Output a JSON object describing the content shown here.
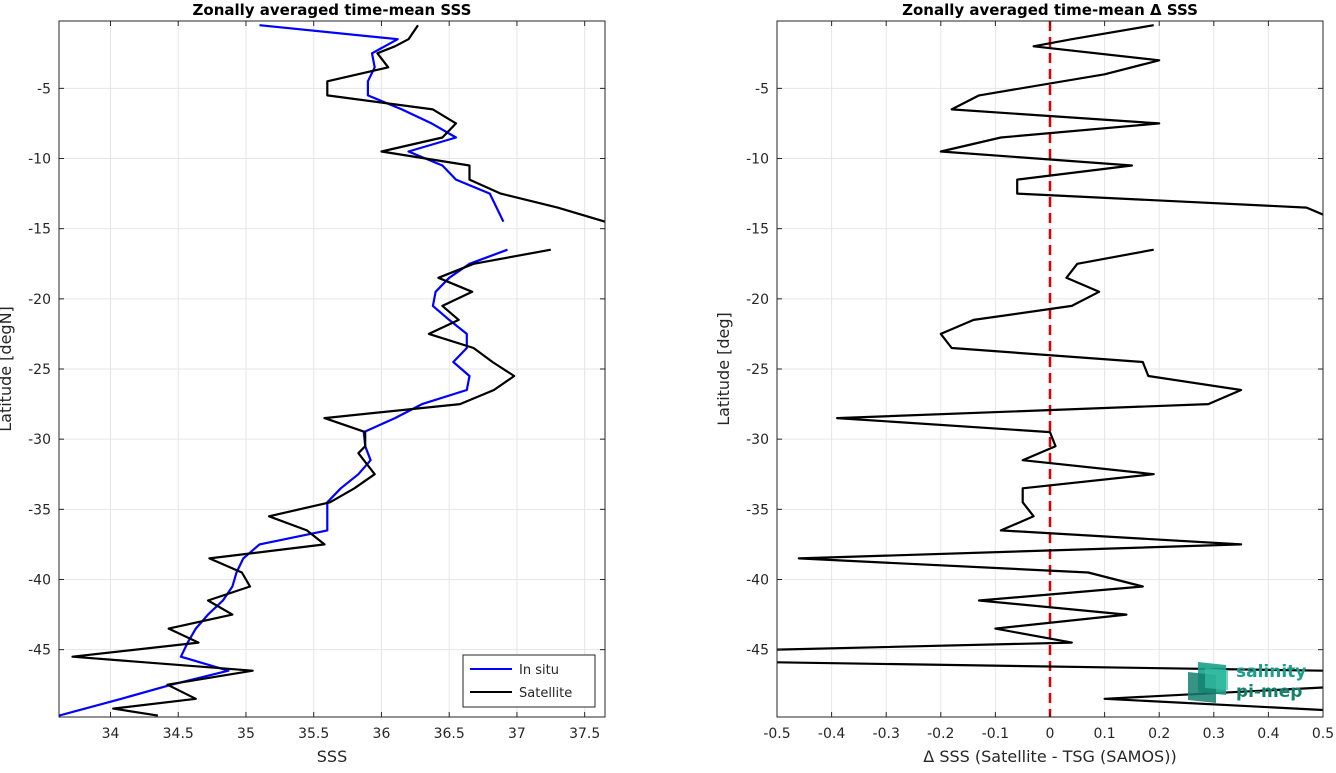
{
  "chart_data": [
    {
      "type": "line",
      "title": "Zonally averaged time-mean SSS",
      "xlabel": "SSS",
      "ylabel": "Latitude [degN]",
      "xlim": [
        33.62,
        37.65
      ],
      "ylim": [
        -49.8,
        -0.2
      ],
      "xticks": [
        34,
        34.5,
        35,
        35.5,
        36,
        36.5,
        37,
        37.5
      ],
      "xtick_labels": [
        "34",
        "34.5",
        "35",
        "35.5",
        "36",
        "36.5",
        "37",
        "37.5"
      ],
      "yticks": [
        -5,
        -10,
        -15,
        -20,
        -25,
        -30,
        -35,
        -40,
        -45
      ],
      "ytick_labels": [
        "-5",
        "-10",
        "-15",
        "-20",
        "-25",
        "-30",
        "-35",
        "-40",
        "-45"
      ],
      "grid": true,
      "legend": "bottom-right",
      "series": [
        {
          "name": "In situ",
          "color": "#0000ff",
          "segments": [
            [
              [
                35.1,
                -0.5
              ],
              [
                36.12,
                -1.5
              ],
              [
                35.93,
                -2.5
              ],
              [
                35.95,
                -3.5
              ],
              [
                35.9,
                -4.5
              ],
              [
                35.9,
                -5.5
              ],
              [
                36.15,
                -6.5
              ],
              [
                36.37,
                -7.5
              ],
              [
                36.55,
                -8.5
              ],
              [
                36.2,
                -9.5
              ],
              [
                36.45,
                -10.5
              ],
              [
                36.55,
                -11.5
              ],
              [
                36.8,
                -12.5
              ],
              [
                36.85,
                -13.5
              ],
              [
                36.9,
                -14.5
              ]
            ],
            [
              [
                36.93,
                -16.5
              ],
              [
                36.65,
                -17.5
              ],
              [
                36.5,
                -18.5
              ],
              [
                36.4,
                -19.5
              ],
              [
                36.38,
                -20.5
              ],
              [
                36.5,
                -21.5
              ],
              [
                36.63,
                -22.5
              ],
              [
                36.63,
                -23.5
              ],
              [
                36.53,
                -24.5
              ],
              [
                36.65,
                -25.5
              ],
              [
                36.63,
                -26.5
              ],
              [
                36.3,
                -27.5
              ],
              [
                36.1,
                -28.5
              ],
              [
                35.87,
                -29.5
              ],
              [
                35.88,
                -30.5
              ],
              [
                35.92,
                -31.5
              ],
              [
                35.83,
                -32.5
              ],
              [
                35.7,
                -33.5
              ],
              [
                35.6,
                -34.5
              ],
              [
                35.6,
                -35.5
              ],
              [
                35.6,
                -36.5
              ],
              [
                35.1,
                -37.5
              ],
              [
                34.98,
                -38.5
              ],
              [
                34.93,
                -39.5
              ],
              [
                34.9,
                -40.5
              ],
              [
                34.83,
                -41.5
              ],
              [
                34.72,
                -42.5
              ],
              [
                34.63,
                -43.5
              ],
              [
                34.57,
                -44.5
              ],
              [
                34.52,
                -45.5
              ],
              [
                34.87,
                -46.5
              ],
              [
                34.45,
                -47.5
              ],
              [
                34.08,
                -48.5
              ],
              [
                33.62,
                -49.7
              ]
            ]
          ]
        },
        {
          "name": "Satellite",
          "color": "#000000",
          "segments": [
            [
              [
                36.27,
                -0.5
              ],
              [
                36.2,
                -1.5
              ],
              [
                36.1,
                -2
              ],
              [
                35.97,
                -2.5
              ],
              [
                36.05,
                -3.5
              ],
              [
                35.6,
                -4.5
              ],
              [
                35.6,
                -5.5
              ],
              [
                36.38,
                -6.5
              ],
              [
                36.55,
                -7.5
              ],
              [
                36.45,
                -8.5
              ],
              [
                36.0,
                -9.5
              ],
              [
                36.65,
                -10.5
              ],
              [
                36.65,
                -11.5
              ],
              [
                36.88,
                -12.5
              ],
              [
                37.3,
                -13.5
              ],
              [
                37.65,
                -14.5
              ]
            ],
            [
              [
                37.25,
                -16.5
              ],
              [
                36.68,
                -17.5
              ],
              [
                36.42,
                -18.5
              ],
              [
                36.67,
                -19.5
              ],
              [
                36.45,
                -20.5
              ],
              [
                36.57,
                -21.5
              ],
              [
                36.35,
                -22.5
              ],
              [
                36.68,
                -23.5
              ],
              [
                36.82,
                -24.5
              ],
              [
                36.98,
                -25.5
              ],
              [
                36.83,
                -26.5
              ],
              [
                36.58,
                -27.5
              ],
              [
                35.58,
                -28.5
              ],
              [
                35.88,
                -29.5
              ],
              [
                35.88,
                -30.5
              ],
              [
                35.83,
                -31
              ],
              [
                35.95,
                -32.5
              ],
              [
                35.8,
                -33.5
              ],
              [
                35.62,
                -34.5
              ],
              [
                35.17,
                -35.5
              ],
              [
                35.45,
                -36.5
              ],
              [
                35.58,
                -37.5
              ],
              [
                34.73,
                -38.5
              ],
              [
                34.97,
                -39.5
              ],
              [
                35.03,
                -40.5
              ],
              [
                34.72,
                -41.5
              ],
              [
                34.9,
                -42.5
              ],
              [
                34.43,
                -43.5
              ],
              [
                34.65,
                -44.5
              ],
              [
                33.72,
                -45.5
              ],
              [
                35.05,
                -46.5
              ],
              [
                34.42,
                -47.5
              ],
              [
                34.63,
                -48.5
              ],
              [
                34.02,
                -49.2
              ],
              [
                34.35,
                -49.7
              ]
            ]
          ]
        }
      ]
    },
    {
      "type": "line",
      "title": "Zonally averaged time-mean Δ SSS",
      "xlabel": "Δ SSS (Satellite - TSG (SAMOS))",
      "ylabel": "Latitude [deg]",
      "xlim": [
        -0.5,
        0.5
      ],
      "ylim": [
        -49.8,
        -0.2
      ],
      "xticks": [
        -0.5,
        -0.4,
        -0.3,
        -0.2,
        -0.1,
        0,
        0.1,
        0.2,
        0.3,
        0.4,
        0.5
      ],
      "xtick_labels": [
        "-0.5",
        "-0.4",
        "-0.3",
        "-0.2",
        "-0.1",
        "0",
        "0.1",
        "0.2",
        "0.3",
        "0.4",
        "0.5"
      ],
      "yticks": [
        -5,
        -10,
        -15,
        -20,
        -25,
        -30,
        -35,
        -40,
        -45
      ],
      "ytick_labels": [
        "-5",
        "-10",
        "-15",
        "-20",
        "-25",
        "-30",
        "-35",
        "-40",
        "-45"
      ],
      "grid": true,
      "reference_line": {
        "x": 0,
        "color": "#dd0000",
        "style": "dashed"
      },
      "series": [
        {
          "color": "#000000",
          "segments": [
            [
              [
                0.19,
                -0.5
              ],
              [
                0.04,
                -1.5
              ],
              [
                -0.03,
                -2
              ],
              [
                0.2,
                -3
              ],
              [
                0.1,
                -4
              ],
              [
                -0.13,
                -5.5
              ],
              [
                -0.18,
                -6.5
              ],
              [
                0.2,
                -7.5
              ],
              [
                -0.09,
                -8.5
              ],
              [
                -0.2,
                -9.5
              ],
              [
                0.15,
                -10.5
              ],
              [
                -0.06,
                -11.5
              ],
              [
                -0.06,
                -12.5
              ],
              [
                0.47,
                -13.5
              ],
              [
                0.5,
                -14
              ]
            ],
            [
              [
                0.19,
                -16.5
              ],
              [
                0.05,
                -17.5
              ],
              [
                0.03,
                -18.5
              ],
              [
                0.09,
                -19.5
              ],
              [
                0.04,
                -20.5
              ],
              [
                -0.14,
                -21.5
              ],
              [
                -0.2,
                -22.5
              ],
              [
                -0.18,
                -23.5
              ],
              [
                0.17,
                -24.5
              ],
              [
                0.18,
                -25.5
              ],
              [
                0.35,
                -26.5
              ],
              [
                0.29,
                -27.5
              ],
              [
                -0.39,
                -28.5
              ],
              [
                0.0,
                -29.5
              ],
              [
                0.01,
                -30.5
              ],
              [
                -0.05,
                -31.5
              ],
              [
                0.19,
                -32.5
              ],
              [
                -0.05,
                -33.5
              ],
              [
                -0.05,
                -34.5
              ],
              [
                -0.03,
                -35.5
              ],
              [
                -0.09,
                -36.5
              ],
              [
                0.35,
                -37.5
              ],
              [
                -0.46,
                -38.5
              ],
              [
                0.07,
                -39.5
              ],
              [
                0.17,
                -40.5
              ],
              [
                -0.13,
                -41.5
              ],
              [
                0.14,
                -42.5
              ],
              [
                -0.1,
                -43.5
              ],
              [
                0.04,
                -44.5
              ],
              [
                -0.5,
                -45
              ]
            ],
            [
              [
                -0.5,
                -45.9
              ],
              [
                0.5,
                -46.5
              ]
            ],
            [
              [
                0.5,
                -47.7
              ],
              [
                0.1,
                -48.5
              ],
              [
                0.5,
                -49.3
              ]
            ]
          ]
        }
      ]
    }
  ],
  "logo": {
    "text_line1": "salinity",
    "text_line2": "pi-mep",
    "color": "#1aa08a"
  }
}
